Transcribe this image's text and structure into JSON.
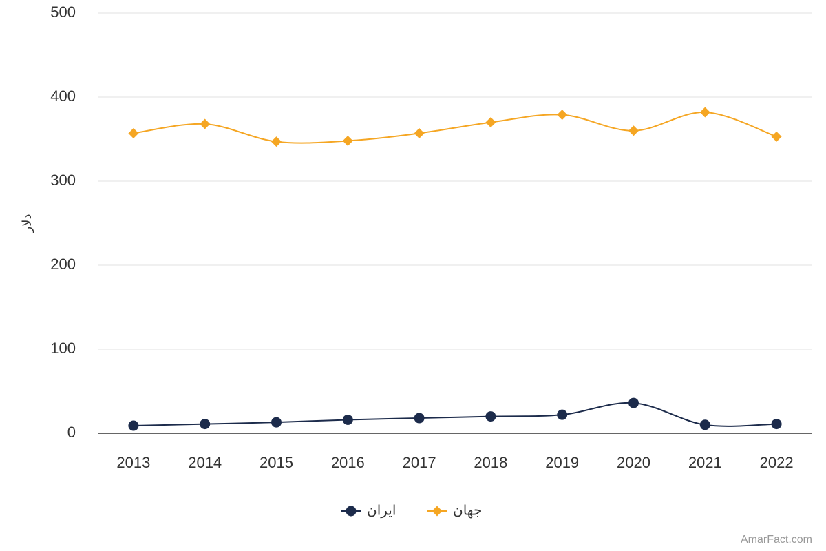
{
  "chart_data": {
    "type": "line",
    "y_label": "دلار",
    "categories": [
      "2013",
      "2014",
      "2015",
      "2016",
      "2017",
      "2018",
      "2019",
      "2020",
      "2021",
      "2022"
    ],
    "series": [
      {
        "name": "ایران",
        "color": "#1c2b4b",
        "marker": "circle",
        "values": [
          9,
          11,
          13,
          16,
          18,
          20,
          22,
          36,
          10,
          11
        ]
      },
      {
        "name": "جهان",
        "color": "#f5a623",
        "marker": "diamond",
        "values": [
          357,
          368,
          347,
          348,
          357,
          370,
          379,
          360,
          382,
          353
        ]
      }
    ],
    "ylim": [
      0,
      500
    ],
    "yticks": [
      0,
      100,
      200,
      300,
      400,
      500
    ],
    "grid": true,
    "legend": "bottom",
    "credits": "AmarFact.com"
  }
}
